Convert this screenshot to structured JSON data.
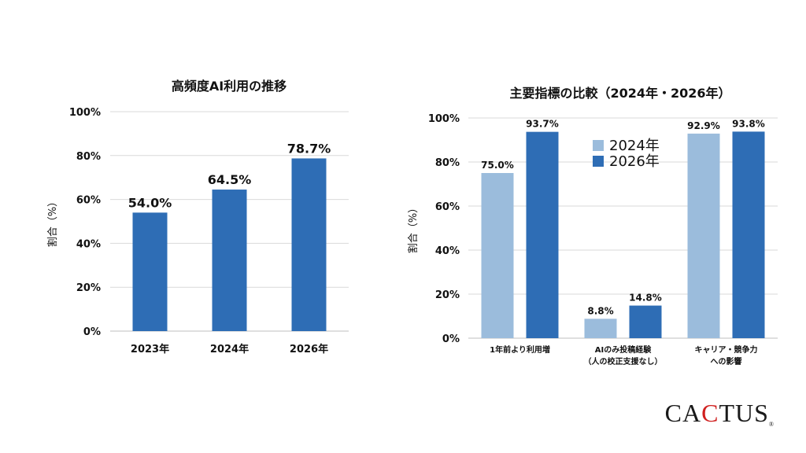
{
  "chart_data": [
    {
      "type": "bar",
      "title": "高頻度AI利用の推移",
      "ylabel": "割合（%）",
      "categories": [
        "2023年",
        "2024年",
        "2026年"
      ],
      "values": [
        54.0,
        64.5,
        78.7
      ],
      "value_labels": [
        "54.0%",
        "64.5%",
        "78.7%"
      ],
      "ylim": [
        0,
        100
      ],
      "yticks": [
        "0%",
        "20%",
        "40%",
        "60%",
        "80%",
        "100%"
      ],
      "grid": true,
      "color": "#2e6db5"
    },
    {
      "type": "bar",
      "title": "主要指標の比較（2024年・2026年）",
      "ylabel": "割合（%）",
      "categories": [
        "1年前より利用増",
        "AIのみ投稿経験\n（人の校正支援なし）",
        "キャリア・競争力\nへの影響"
      ],
      "series": [
        {
          "name": "2024年",
          "values": [
            75.0,
            8.8,
            92.9
          ],
          "value_labels": [
            "75.0%",
            "8.8%",
            "92.9%"
          ],
          "color": "#9bbcdc"
        },
        {
          "name": "2026年",
          "values": [
            93.7,
            14.8,
            93.8
          ],
          "value_labels": [
            "93.7%",
            "14.8%",
            "93.8%"
          ],
          "color": "#2e6db5"
        }
      ],
      "ylim": [
        0,
        100
      ],
      "yticks": [
        "0%",
        "20%",
        "40%",
        "60%",
        "80%",
        "100%"
      ],
      "grid": true,
      "legend": "top-center"
    }
  ],
  "logo": {
    "prefix": "CA",
    "accent": "C",
    "suffix": "TUS",
    "mark": "®"
  }
}
